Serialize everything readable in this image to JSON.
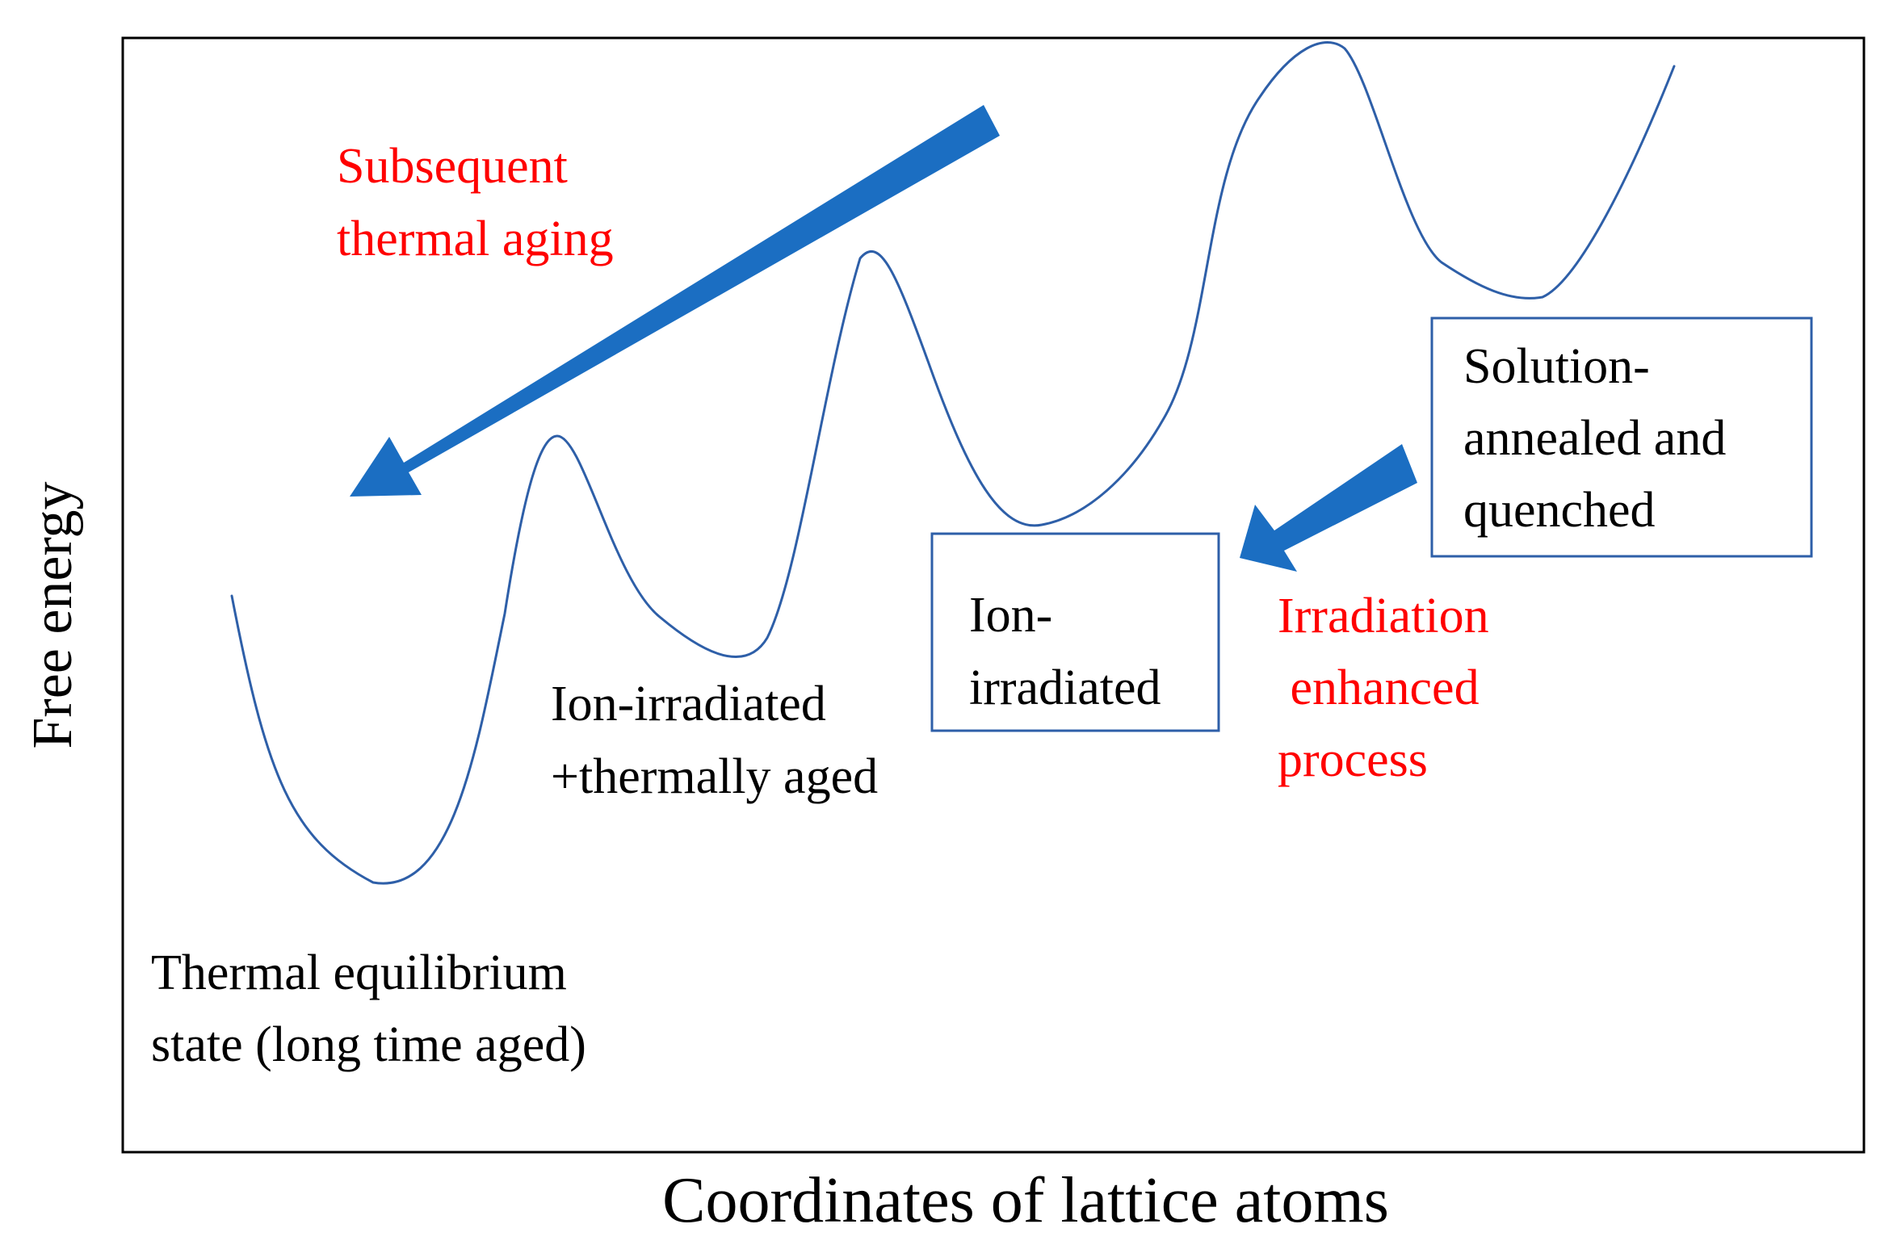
{
  "axes": {
    "y_label": "Free energy",
    "x_label": "Coordinates of lattice atoms"
  },
  "states": {
    "thermal_equilibrium": [
      "Thermal equilibrium",
      "state (long time aged)"
    ],
    "ion_irradiated_aged": [
      "Ion-irradiated",
      "+thermally aged"
    ],
    "ion_irradiated": [
      "Ion-",
      "irradiated"
    ],
    "solution_annealed": [
      "Solution-",
      "annealed and",
      "quenched"
    ]
  },
  "processes": {
    "thermal_aging": [
      "Subsequent",
      "thermal aging"
    ],
    "irradiation": [
      "Irradiation",
      " enhanced",
      "process"
    ]
  },
  "colors": {
    "curve": "#2e5fa8",
    "arrow": "#1b6ec2",
    "process_text": "#ff0000",
    "frame": "#000000",
    "box_border": "#2e5fa8"
  }
}
